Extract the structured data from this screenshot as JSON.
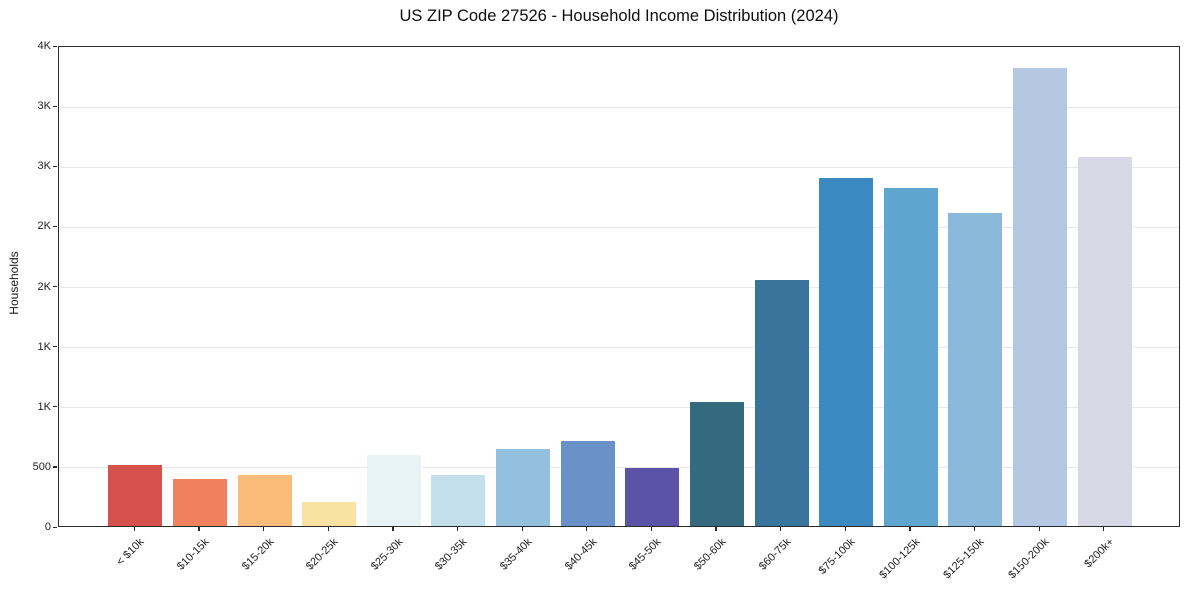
{
  "chart_data": {
    "type": "bar",
    "title": "US ZIP Code 27526 - Household Income Distribution (2024)",
    "xlabel": "",
    "ylabel": "Households",
    "ylim": [
      0,
      4000
    ],
    "ytick_interval": 500,
    "ytick_labels_bottom_to_top": [
      "0",
      "500",
      "1K",
      "1K",
      "2K",
      "2K",
      "3K",
      "3K",
      "4K"
    ],
    "grid": "horizontal",
    "legend": "none",
    "categories": [
      "< $10k",
      "$10-15k",
      "$15-20k",
      "$20-25k",
      "$25-30k",
      "$30-35k",
      "$35-40k",
      "$40-45k",
      "$45-50k",
      "$50-60k",
      "$60-75k",
      "$75-100k",
      "$100-125k",
      "$125-150k",
      "$150-200k",
      "$200k+"
    ],
    "values": [
      510,
      395,
      425,
      200,
      590,
      425,
      640,
      710,
      485,
      1030,
      2050,
      2890,
      2810,
      2600,
      3810,
      3070
    ],
    "bar_colors": [
      "#d4524b",
      "#f0815f",
      "#fabc78",
      "#fae3a2",
      "#e8f3f5",
      "#c3e0ec",
      "#93c0de",
      "#6a91c8",
      "#5b53a8",
      "#34697e",
      "#38749c",
      "#3a8ac1",
      "#5ea6cf",
      "#8bb9dc",
      "#b5c8e3",
      "#d9d8e6"
    ],
    "colors": {
      "background": "#ffffff",
      "spine": "#2b2b2b",
      "gridline": "#e9e9e9",
      "tick_text": "#1f1f1f",
      "title_text": "#0e0e0e"
    }
  }
}
